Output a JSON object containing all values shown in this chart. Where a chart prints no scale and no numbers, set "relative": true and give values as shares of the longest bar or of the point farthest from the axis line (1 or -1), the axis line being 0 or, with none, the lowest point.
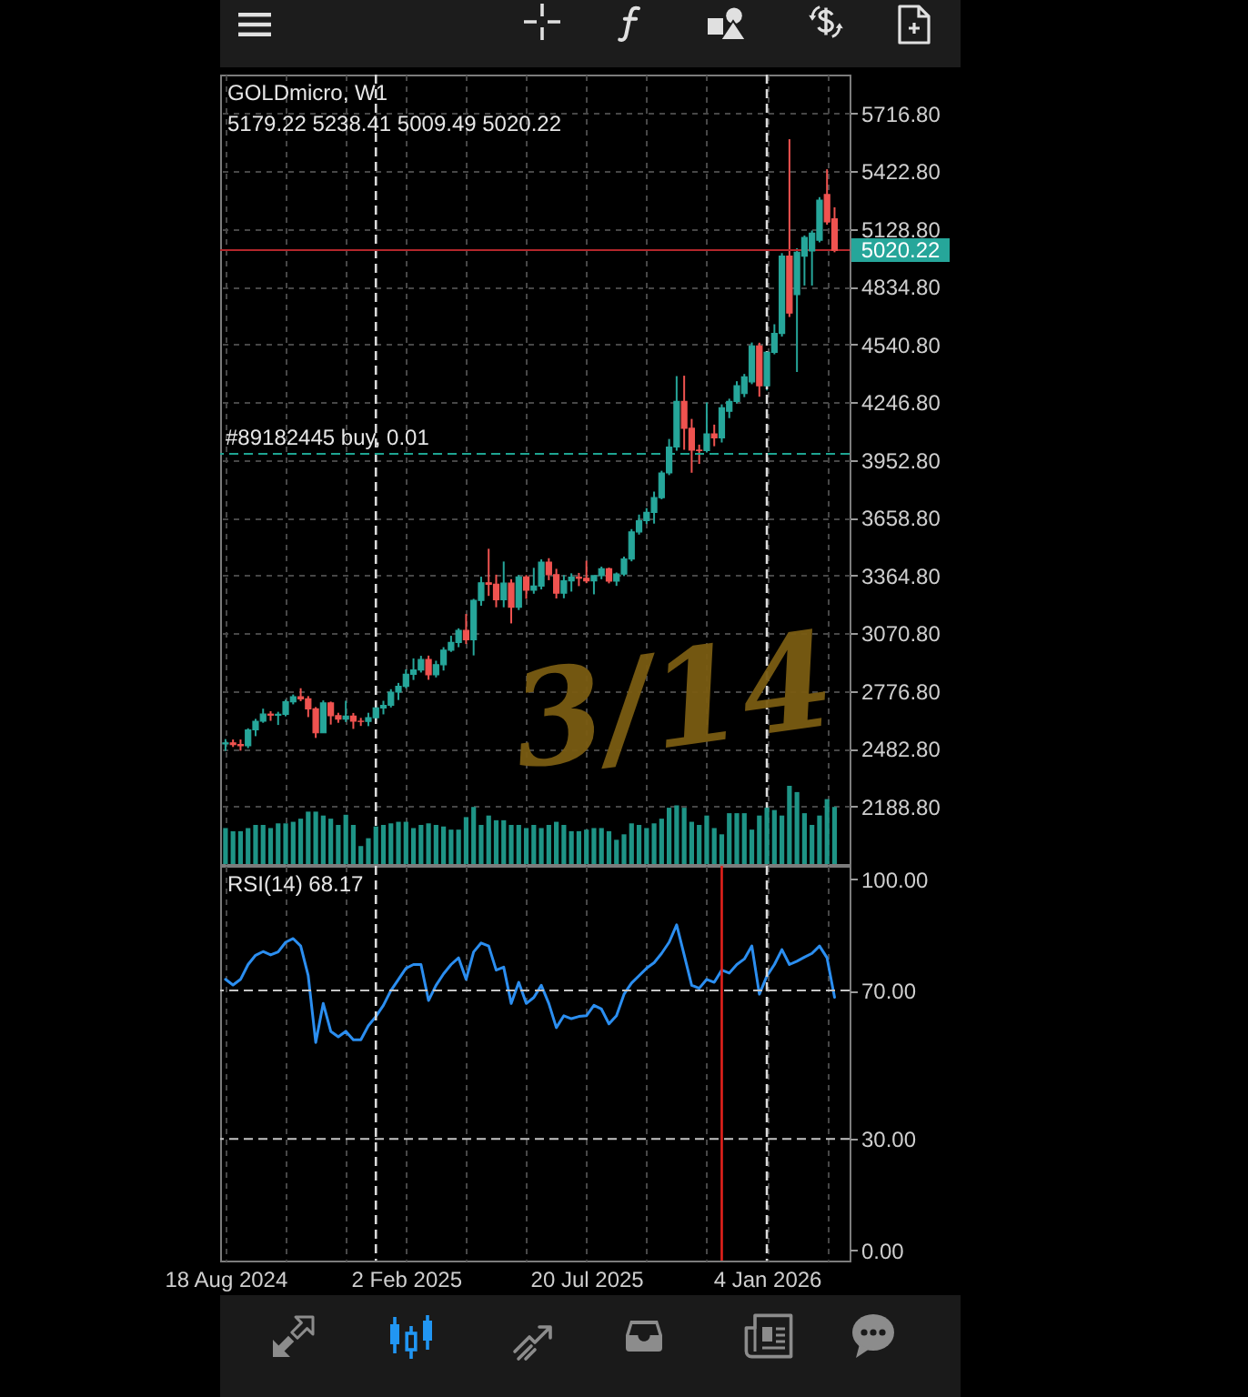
{
  "chart_data": [
    {
      "type": "candlestick",
      "title": "GOLDmicro, W1",
      "subtitle": "5179.22 5238.41 5009.49 5020.22",
      "x": [
        "2024-08-18",
        "2024-08-25",
        "2024-09-01",
        "2024-09-08",
        "2024-09-15",
        "2024-09-22",
        "2024-09-29",
        "2024-10-06",
        "2024-10-13",
        "2024-10-20",
        "2024-10-27",
        "2024-11-03",
        "2024-11-10",
        "2024-11-17",
        "2024-11-24",
        "2024-12-01",
        "2024-12-08",
        "2024-12-15",
        "2024-12-22",
        "2024-12-29",
        "2025-01-05",
        "2025-01-12",
        "2025-01-19",
        "2025-01-26",
        "2025-02-02",
        "2025-02-09",
        "2025-02-16",
        "2025-02-23",
        "2025-03-02",
        "2025-03-09",
        "2025-03-16",
        "2025-03-23",
        "2025-03-30",
        "2025-04-06",
        "2025-04-13",
        "2025-04-20",
        "2025-04-27",
        "2025-05-04",
        "2025-05-11",
        "2025-05-18",
        "2025-05-25",
        "2025-06-01",
        "2025-06-08",
        "2025-06-15",
        "2025-06-22",
        "2025-06-29",
        "2025-07-06",
        "2025-07-13",
        "2025-07-20",
        "2025-07-27",
        "2025-08-03",
        "2025-08-10",
        "2025-08-17",
        "2025-08-24",
        "2025-08-31",
        "2025-09-07",
        "2025-09-14",
        "2025-09-21",
        "2025-09-28",
        "2025-10-05",
        "2025-10-12",
        "2025-10-19",
        "2025-10-26",
        "2025-11-02",
        "2025-11-09",
        "2025-11-16",
        "2025-11-23",
        "2025-11-30",
        "2025-12-07",
        "2025-12-14",
        "2025-12-21",
        "2025-12-28",
        "2026-01-04",
        "2026-01-11",
        "2026-01-18",
        "2026-01-25",
        "2026-02-01",
        "2026-02-08",
        "2026-02-15",
        "2026-02-22",
        "2026-03-01",
        "2026-03-08"
      ],
      "ohlc": [
        [
          2507,
          2531,
          2471,
          2512
        ],
        [
          2512,
          2529,
          2491,
          2503
        ],
        [
          2503,
          2529,
          2472,
          2497
        ],
        [
          2497,
          2586,
          2485,
          2578
        ],
        [
          2578,
          2634,
          2546,
          2622
        ],
        [
          2622,
          2686,
          2614,
          2658
        ],
        [
          2658,
          2673,
          2624,
          2653
        ],
        [
          2653,
          2670,
          2603,
          2657
        ],
        [
          2657,
          2732,
          2647,
          2721
        ],
        [
          2721,
          2758,
          2708,
          2747
        ],
        [
          2747,
          2790,
          2724,
          2736
        ],
        [
          2736,
          2750,
          2643,
          2685
        ],
        [
          2685,
          2694,
          2537,
          2563
        ],
        [
          2563,
          2728,
          2563,
          2715
        ],
        [
          2715,
          2722,
          2605,
          2650
        ],
        [
          2650,
          2665,
          2614,
          2633
        ],
        [
          2633,
          2726,
          2618,
          2648
        ],
        [
          2648,
          2664,
          2583,
          2622
        ],
        [
          2622,
          2639,
          2598,
          2621
        ],
        [
          2621,
          2665,
          2597,
          2640
        ],
        [
          2640,
          2697,
          2628,
          2690
        ],
        [
          2690,
          2726,
          2657,
          2703
        ],
        [
          2703,
          2785,
          2692,
          2770
        ],
        [
          2770,
          2817,
          2730,
          2800
        ],
        [
          2800,
          2886,
          2790,
          2861
        ],
        [
          2861,
          2942,
          2832,
          2883
        ],
        [
          2883,
          2955,
          2870,
          2936
        ],
        [
          2936,
          2956,
          2833,
          2858
        ],
        [
          2858,
          2930,
          2845,
          2910
        ],
        [
          2910,
          2999,
          2880,
          2984
        ],
        [
          2984,
          3057,
          2975,
          3023
        ],
        [
          3023,
          3095,
          2999,
          3084
        ],
        [
          3084,
          3168,
          3015,
          3037
        ],
        [
          3037,
          3245,
          2957,
          3237
        ],
        [
          3237,
          3358,
          3210,
          3327
        ],
        [
          3327,
          3500,
          3260,
          3319
        ],
        [
          3319,
          3368,
          3202,
          3240
        ],
        [
          3240,
          3435,
          3202,
          3325
        ],
        [
          3325,
          3345,
          3120,
          3202
        ],
        [
          3202,
          3366,
          3188,
          3357
        ],
        [
          3357,
          3366,
          3245,
          3289
        ],
        [
          3289,
          3403,
          3271,
          3310
        ],
        [
          3310,
          3446,
          3293,
          3432
        ],
        [
          3432,
          3452,
          3340,
          3368
        ],
        [
          3368,
          3398,
          3247,
          3274
        ],
        [
          3274,
          3366,
          3248,
          3337
        ],
        [
          3337,
          3375,
          3282,
          3355
        ],
        [
          3355,
          3377,
          3310,
          3350
        ],
        [
          3350,
          3439,
          3325,
          3337
        ],
        [
          3337,
          3363,
          3268,
          3363
        ],
        [
          3363,
          3409,
          3345,
          3398
        ],
        [
          3398,
          3404,
          3324,
          3335
        ],
        [
          3335,
          3379,
          3311,
          3371
        ],
        [
          3371,
          3460,
          3361,
          3448
        ],
        [
          3448,
          3600,
          3436,
          3586
        ],
        [
          3586,
          3674,
          3572,
          3643
        ],
        [
          3643,
          3707,
          3626,
          3685
        ],
        [
          3685,
          3791,
          3628,
          3760
        ],
        [
          3760,
          3897,
          3752,
          3886
        ],
        [
          3886,
          4059,
          3875,
          4018
        ],
        [
          4018,
          4379,
          3999,
          4250
        ],
        [
          4250,
          4381,
          4004,
          4113
        ],
        [
          4113,
          4161,
          3887,
          4002
        ],
        [
          4002,
          4030,
          3932,
          4000
        ],
        [
          4000,
          4245,
          3990,
          4085
        ],
        [
          4085,
          4132,
          4022,
          4065
        ],
        [
          4065,
          4235,
          4041,
          4218
        ],
        [
          4200,
          4264,
          4165,
          4250
        ],
        [
          4250,
          4353,
          4240,
          4330
        ],
        [
          4290,
          4390,
          4272,
          4375
        ],
        [
          4350,
          4550,
          4338,
          4533
        ],
        [
          4533,
          4549,
          4274,
          4330
        ],
        [
          4330,
          4500,
          4306,
          4500
        ],
        [
          4500,
          4643,
          4490,
          4596
        ],
        [
          4596,
          5005,
          4580,
          4990
        ],
        [
          4990,
          5585,
          4680,
          4700
        ],
        [
          4794,
          5030,
          4400,
          5010
        ],
        [
          4990,
          5095,
          4840,
          5085
        ],
        [
          5016,
          5120,
          4840,
          5107
        ],
        [
          5071,
          5290,
          5060,
          5275
        ],
        [
          5303,
          5432,
          5150,
          5164
        ],
        [
          5179.22,
          5238.41,
          5009.49,
          5020.22
        ]
      ],
      "colors": [
        "#26a69a",
        "#ef5350",
        "#ef5350",
        "#26a69a",
        "#26a69a",
        "#26a69a",
        "#ef5350",
        "#26a69a",
        "#26a69a",
        "#26a69a",
        "#ef5350",
        "#ef5350",
        "#ef5350",
        "#26a69a",
        "#ef5350",
        "#ef5350",
        "#26a69a",
        "#ef5350",
        "#ef5350",
        "#26a69a",
        "#26a69a",
        "#26a69a",
        "#26a69a",
        "#26a69a",
        "#26a69a",
        "#26a69a",
        "#26a69a",
        "#ef5350",
        "#26a69a",
        "#26a69a",
        "#26a69a",
        "#26a69a",
        "#ef5350",
        "#26a69a",
        "#26a69a",
        "#ef5350",
        "#ef5350",
        "#26a69a",
        "#ef5350",
        "#26a69a",
        "#ef5350",
        "#26a69a",
        "#26a69a",
        "#ef5350",
        "#ef5350",
        "#26a69a",
        "#26a69a",
        "#ef5350",
        "#ef5350",
        "#26a69a",
        "#26a69a",
        "#ef5350",
        "#26a69a",
        "#26a69a",
        "#26a69a",
        "#26a69a",
        "#26a69a",
        "#26a69a",
        "#26a69a",
        "#26a69a",
        "#26a69a",
        "#ef5350",
        "#ef5350",
        "#ef5350",
        "#26a69a",
        "#ef5350",
        "#26a69a",
        "#26a69a",
        "#26a69a",
        "#26a69a",
        "#26a69a",
        "#ef5350",
        "#26a69a",
        "#26a69a",
        "#26a69a",
        "#ef5350",
        "#26a69a",
        "#26a69a",
        "#26a69a",
        "#26a69a",
        "#ef5350",
        "#ef5350"
      ],
      "xlim": [
        "2024-08-13",
        "2026-03-22"
      ],
      "xticks": [
        {
          "value": "2024-08-18",
          "label": null
        },
        {
          "value": "2024-10-13",
          "label": null
        },
        {
          "value": "2024-12-08",
          "label": null
        },
        {
          "value": "2025-02-02",
          "label": null
        },
        {
          "value": "2025-03-30",
          "label": null
        },
        {
          "value": "2025-05-25",
          "label": null
        },
        {
          "value": "2025-07-20",
          "label": null
        },
        {
          "value": "2025-09-14",
          "label": null
        },
        {
          "value": "2025-11-09",
          "label": null
        },
        {
          "value": "2026-01-04",
          "label": null
        },
        {
          "value": "2026-03-01",
          "label": null
        }
      ],
      "ylim": [
        1895,
        5914
      ],
      "yticks": [
        {
          "value": 2188.8,
          "label": "2188.80"
        },
        {
          "value": 2482.8,
          "label": "2482.80"
        },
        {
          "value": 2776.8,
          "label": "2776.80"
        },
        {
          "value": 3070.8,
          "label": "3070.80"
        },
        {
          "value": 3364.8,
          "label": "3364.80"
        },
        {
          "value": 3658.8,
          "label": "3658.80"
        },
        {
          "value": 3952.8,
          "label": "3952.80"
        },
        {
          "value": 4246.8,
          "label": "4246.80"
        },
        {
          "value": 4540.8,
          "label": "4540.80"
        },
        {
          "value": 4834.8,
          "label": "4834.80"
        },
        {
          "value": 5128.8,
          "label": "5128.80"
        },
        {
          "value": 5422.8,
          "label": "5422.80"
        },
        {
          "value": 5716.8,
          "label": "5716.80"
        }
      ],
      "grid": true,
      "tick_labels": "y",
      "ref_lines": [
        {
          "axis": "x",
          "value": "2025-01-05",
          "color": "#d9d9d9",
          "line_style": "dashed"
        },
        {
          "axis": "x",
          "value": "2026-01-04",
          "color": "#d9d9d9",
          "line_style": "dashed"
        },
        {
          "axis": "y",
          "value": 3983,
          "label": "#89182445 buy, 0.01",
          "color": "#1ea592",
          "line_style": "dashed"
        },
        {
          "axis": "y",
          "value": 5020.22,
          "label": "5020.22",
          "color": "#b3262b",
          "line_style": "solid"
        }
      ],
      "annotations": [
        "3/14"
      ]
    },
    {
      "type": "bar",
      "relative": true,
      "x": [
        "2024-08-18",
        "2024-08-25",
        "2024-09-01",
        "2024-09-08",
        "2024-09-15",
        "2024-09-22",
        "2024-09-29",
        "2024-10-06",
        "2024-10-13",
        "2024-10-20",
        "2024-10-27",
        "2024-11-03",
        "2024-11-10",
        "2024-11-17",
        "2024-11-24",
        "2024-12-01",
        "2024-12-08",
        "2024-12-15",
        "2024-12-22",
        "2024-12-29",
        "2025-01-05",
        "2025-01-12",
        "2025-01-19",
        "2025-01-26",
        "2025-02-02",
        "2025-02-09",
        "2025-02-16",
        "2025-02-23",
        "2025-03-02",
        "2025-03-09",
        "2025-03-16",
        "2025-03-23",
        "2025-03-30",
        "2025-04-06",
        "2025-04-13",
        "2025-04-20",
        "2025-04-27",
        "2025-05-04",
        "2025-05-11",
        "2025-05-18",
        "2025-05-25",
        "2025-06-01",
        "2025-06-08",
        "2025-06-15",
        "2025-06-22",
        "2025-06-29",
        "2025-07-06",
        "2025-07-13",
        "2025-07-20",
        "2025-07-27",
        "2025-08-03",
        "2025-08-10",
        "2025-08-17",
        "2025-08-24",
        "2025-08-31",
        "2025-09-07",
        "2025-09-14",
        "2025-09-21",
        "2025-09-28",
        "2025-10-05",
        "2025-10-12",
        "2025-10-19",
        "2025-10-26",
        "2025-11-02",
        "2025-11-09",
        "2025-11-16",
        "2025-11-23",
        "2025-11-30",
        "2025-12-07",
        "2025-12-14",
        "2025-12-21",
        "2025-12-28",
        "2026-01-04",
        "2026-01-11",
        "2026-01-18",
        "2026-01-25",
        "2026-02-01",
        "2026-02-08",
        "2026-02-15",
        "2026-02-22",
        "2026-03-01",
        "2026-03-08"
      ],
      "values": [
        0.46,
        0.42,
        0.42,
        0.46,
        0.5,
        0.5,
        0.46,
        0.52,
        0.52,
        0.54,
        0.58,
        0.67,
        0.67,
        0.62,
        0.58,
        0.5,
        0.63,
        0.5,
        0.23,
        0.33,
        0.48,
        0.5,
        0.52,
        0.54,
        0.54,
        0.46,
        0.5,
        0.52,
        0.5,
        0.48,
        0.44,
        0.44,
        0.6,
        0.73,
        0.5,
        0.62,
        0.56,
        0.56,
        0.5,
        0.5,
        0.46,
        0.5,
        0.46,
        0.5,
        0.54,
        0.5,
        0.42,
        0.42,
        0.44,
        0.46,
        0.46,
        0.42,
        0.31,
        0.38,
        0.52,
        0.5,
        0.46,
        0.52,
        0.58,
        0.72,
        0.75,
        0.72,
        0.54,
        0.5,
        0.62,
        0.46,
        0.38,
        0.65,
        0.65,
        0.65,
        0.44,
        0.62,
        0.72,
        0.69,
        0.62,
        1,
        0.92,
        0.65,
        0.5,
        0.62,
        0.83,
        0.73
      ],
      "color": "#1e9486",
      "xlim": [
        "2024-08-13",
        "2026-03-22"
      ],
      "tick_labels": false
    },
    {
      "type": "line",
      "title": "RSI(14) 68.17",
      "x": [
        "2024-08-18",
        "2024-08-25",
        "2024-09-01",
        "2024-09-08",
        "2024-09-15",
        "2024-09-22",
        "2024-09-29",
        "2024-10-06",
        "2024-10-13",
        "2024-10-20",
        "2024-10-27",
        "2024-11-03",
        "2024-11-10",
        "2024-11-17",
        "2024-11-24",
        "2024-12-01",
        "2024-12-08",
        "2024-12-15",
        "2024-12-22",
        "2024-12-29",
        "2025-01-05",
        "2025-01-12",
        "2025-01-19",
        "2025-01-26",
        "2025-02-02",
        "2025-02-09",
        "2025-02-16",
        "2025-02-23",
        "2025-03-02",
        "2025-03-09",
        "2025-03-16",
        "2025-03-23",
        "2025-03-30",
        "2025-04-06",
        "2025-04-13",
        "2025-04-20",
        "2025-04-27",
        "2025-05-04",
        "2025-05-11",
        "2025-05-18",
        "2025-05-25",
        "2025-06-01",
        "2025-06-08",
        "2025-06-15",
        "2025-06-22",
        "2025-06-29",
        "2025-07-06",
        "2025-07-13",
        "2025-07-20",
        "2025-07-27",
        "2025-08-03",
        "2025-08-10",
        "2025-08-17",
        "2025-08-24",
        "2025-08-31",
        "2025-09-07",
        "2025-09-14",
        "2025-09-21",
        "2025-09-28",
        "2025-10-05",
        "2025-10-12",
        "2025-10-19",
        "2025-10-26",
        "2025-11-02",
        "2025-11-09",
        "2025-11-16",
        "2025-11-23",
        "2025-11-30",
        "2025-12-07",
        "2025-12-14",
        "2025-12-21",
        "2025-12-28",
        "2026-01-04",
        "2026-01-11",
        "2026-01-18",
        "2026-01-25",
        "2026-02-01",
        "2026-02-08",
        "2026-02-15",
        "2026-02-22",
        "2026-03-01",
        "2026-03-08"
      ],
      "series": [
        {
          "color": "#2b8ef0",
          "values": [
            73,
            71.5,
            73,
            77,
            79.5,
            80.5,
            79.6,
            80.4,
            83,
            84,
            82,
            74,
            56,
            66.5,
            59,
            57.5,
            59,
            56.7,
            56.7,
            60.5,
            63,
            66,
            70,
            73,
            76,
            77,
            77,
            67.3,
            71.4,
            74.5,
            77,
            78.8,
            73,
            80.4,
            82.8,
            82,
            75.5,
            76.3,
            66.5,
            72.2,
            66.5,
            68.1,
            71.4,
            66.5,
            60,
            63.2,
            62.4,
            63,
            63.2,
            66,
            65,
            61,
            63.2,
            69,
            72,
            74,
            76,
            77.5,
            80,
            83,
            87.7,
            79.6,
            71.4,
            70.6,
            73,
            72.2,
            75.5,
            74.7,
            77,
            78.5,
            82,
            69,
            73.9,
            77,
            81,
            77,
            77.9,
            79,
            80,
            82,
            78.8,
            68.17
          ]
        }
      ],
      "xlim": [
        "2024-08-13",
        "2026-03-22"
      ],
      "xticks": [
        {
          "value": "2024-08-18",
          "label": "18 Aug 2024"
        },
        {
          "value": "2024-10-13",
          "label": null
        },
        {
          "value": "2024-12-08",
          "label": null
        },
        {
          "value": "2025-02-02",
          "label": "2 Feb 2025"
        },
        {
          "value": "2025-03-30",
          "label": null
        },
        {
          "value": "2025-05-25",
          "label": null
        },
        {
          "value": "2025-07-20",
          "label": "20 Jul 2025"
        },
        {
          "value": "2025-09-14",
          "label": null
        },
        {
          "value": "2025-11-09",
          "label": null
        },
        {
          "value": "2026-01-04",
          "label": "4 Jan 2026"
        },
        {
          "value": "2026-03-01",
          "label": null
        }
      ],
      "ylim": [
        -2.8,
        103.6
      ],
      "yticks": [
        {
          "value": 0,
          "label": "0.00"
        },
        {
          "value": 30,
          "label": "30.00"
        },
        {
          "value": 70,
          "label": "70.00"
        },
        {
          "value": 100,
          "label": "100.00"
        }
      ],
      "grid": "x",
      "ref_lines": [
        {
          "axis": "x",
          "value": "2025-01-05",
          "color": "#d9d9d9",
          "line_style": "dashed"
        },
        {
          "axis": "x",
          "value": "2026-01-04",
          "color": "#d9d9d9",
          "line_style": "dashed"
        },
        {
          "axis": "y",
          "value": 30,
          "color": "#c4c4c4",
          "line_style": "dashed"
        },
        {
          "axis": "y",
          "value": 70,
          "color": "#c4c4c4",
          "line_style": "dashed"
        },
        {
          "axis": "x",
          "value": "2025-11-23",
          "color": "#e3211c",
          "line_style": "solid"
        }
      ]
    }
  ]
}
